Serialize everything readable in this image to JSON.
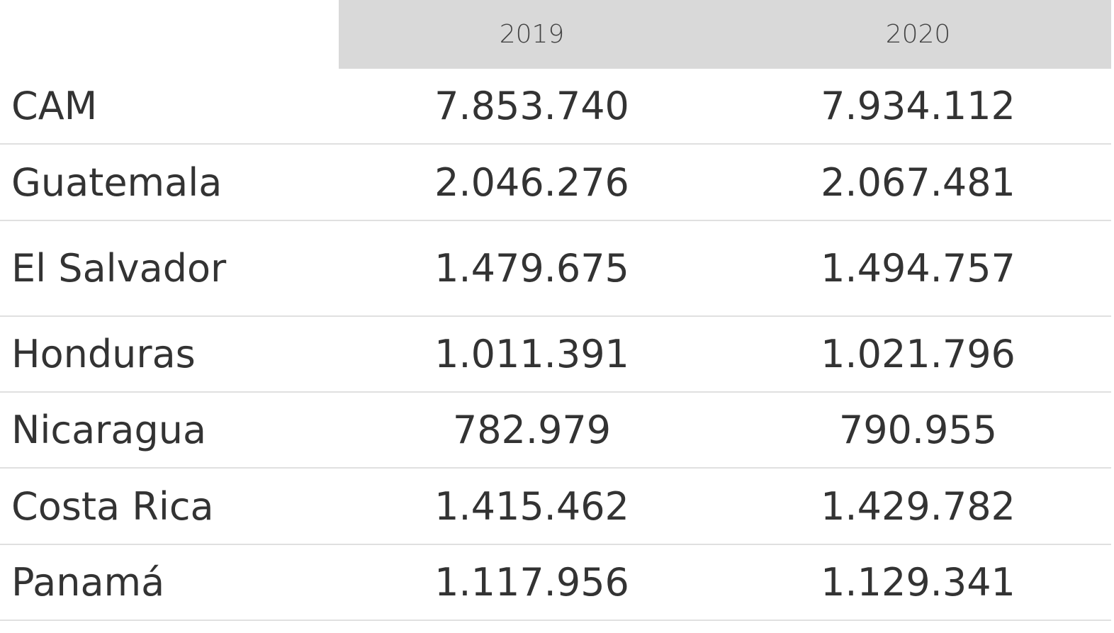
{
  "table": {
    "columns": [
      "2019",
      "2020"
    ],
    "rows": [
      {
        "label": "CAM",
        "values": [
          "7.853.740",
          "7.934.112"
        ]
      },
      {
        "label": "Guatemala",
        "values": [
          "2.046.276",
          "2.067.481"
        ]
      },
      {
        "label": "El Salvador",
        "values": [
          "1.479.675",
          "1.494.757"
        ]
      },
      {
        "label": "Honduras",
        "values": [
          "1.011.391",
          "1.021.796"
        ]
      },
      {
        "label": "Nicaragua",
        "values": [
          "782.979",
          "790.955"
        ]
      },
      {
        "label": "Costa Rica",
        "values": [
          "1.415.462",
          "1.429.782"
        ]
      },
      {
        "label": "Panamá",
        "values": [
          "1.117.956",
          "1.129.341"
        ]
      }
    ]
  },
  "colors": {
    "header_bg": "#d9d9d9",
    "text": "#333333",
    "divider": "#e0e0e0"
  }
}
